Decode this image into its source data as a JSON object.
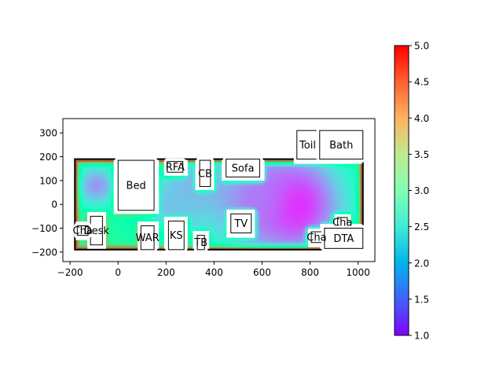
{
  "chart_data": {
    "type": "heatmap",
    "title": "",
    "xlabel": "",
    "ylabel": "",
    "xlim": [
      -230,
      1070
    ],
    "ylim": [
      -240,
      360
    ],
    "xticks": [
      -200,
      0,
      200,
      400,
      600,
      800,
      1000
    ],
    "yticks": [
      -200,
      -100,
      0,
      100,
      200,
      300
    ],
    "grid": false,
    "colormap": "rainbow",
    "colorbar": {
      "min": 1.0,
      "max": 5.0,
      "ticks": [
        1.0,
        1.5,
        2.0,
        2.5,
        3.0,
        3.5,
        4.0,
        4.5,
        5.0
      ],
      "tick_labels": [
        "1.0",
        "1.5",
        "2.0",
        "2.5",
        "3.0",
        "3.5",
        "4.0",
        "4.5",
        "5.0"
      ]
    },
    "room_outline": {
      "x": [
        -180,
        1020
      ],
      "y": [
        -190,
        190
      ]
    },
    "heat_sources": [
      {
        "x": 720,
        "y": 0,
        "value": 1.0,
        "spread": 170
      },
      {
        "x": 560,
        "y": 40,
        "value": 1.6,
        "spread": 140
      },
      {
        "x": -90,
        "y": 80,
        "value": 1.8,
        "spread": 70
      },
      {
        "x": 300,
        "y": 70,
        "value": 2.0,
        "spread": 80
      },
      {
        "x": 400,
        "y": 120,
        "value": 1.9,
        "spread": 90
      },
      {
        "x": 230,
        "y": -10,
        "value": 2.1,
        "spread": 110
      }
    ],
    "base_value": 3.3,
    "edge_value": 5.0,
    "furniture": [
      {
        "label": "Bed",
        "x0": 0,
        "x1": 150,
        "y0": -25,
        "y1": 185
      },
      {
        "label": "RFA",
        "x0": 205,
        "x1": 270,
        "y0": 135,
        "y1": 180
      },
      {
        "label": "CB",
        "x0": 340,
        "x1": 385,
        "y0": 75,
        "y1": 185
      },
      {
        "label": "Sofa",
        "x0": 450,
        "x1": 590,
        "y0": 115,
        "y1": 190
      },
      {
        "label": "Toil",
        "x0": 745,
        "x1": 835,
        "y0": 190,
        "y1": 310
      },
      {
        "label": "Bath",
        "x0": 840,
        "x1": 1020,
        "y0": 190,
        "y1": 310
      },
      {
        "label": "Desk",
        "x0": -115,
        "x1": -65,
        "y0": -170,
        "y1": -50
      },
      {
        "label": "Cha",
        "x0": -170,
        "x1": -125,
        "y0": -130,
        "y1": -90
      },
      {
        "label": "WAR",
        "x0": 95,
        "x1": 150,
        "y0": -190,
        "y1": -90
      },
      {
        "label": "KS",
        "x0": 210,
        "x1": 275,
        "y0": -190,
        "y1": -70
      },
      {
        "label": "TB",
        "x0": 330,
        "x1": 360,
        "y0": -190,
        "y1": -130
      },
      {
        "label": "TV",
        "x0": 470,
        "x1": 555,
        "y0": -120,
        "y1": -40
      },
      {
        "label": "Cha",
        "x0": 915,
        "x1": 955,
        "y0": -95,
        "y1": -55
      },
      {
        "label": "Cha",
        "x0": 805,
        "x1": 850,
        "y0": -160,
        "y1": -115
      },
      {
        "label": "DTA",
        "x0": 860,
        "x1": 1020,
        "y0": -185,
        "y1": -100
      }
    ]
  }
}
